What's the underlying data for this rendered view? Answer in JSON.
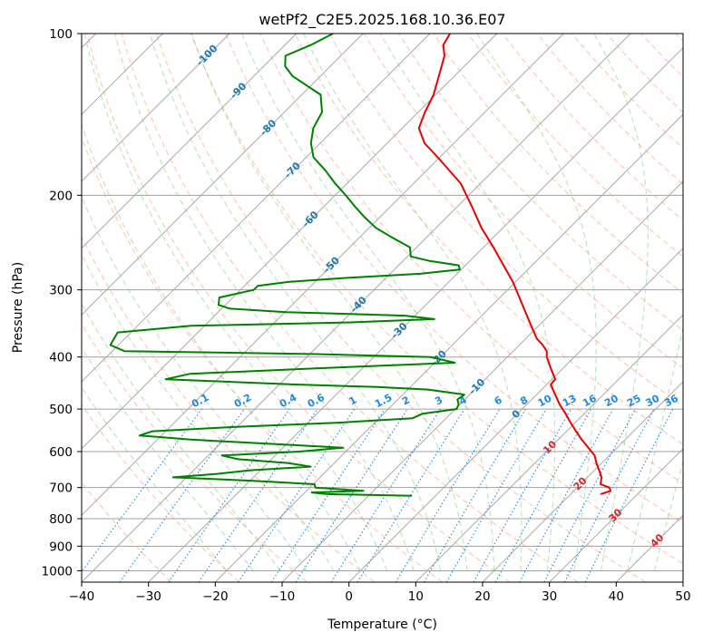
{
  "colors": {
    "temperature": "#ee0000",
    "dewpoint": "#008000",
    "isotherm": "#a0a0a0",
    "isobar": "#a0a0a0",
    "dry_adiabat": "#ff8c69",
    "moist_adiabat": "#77c977",
    "mixing_ratio": "#1e88e5",
    "isotherm_label": "#1f77b4",
    "mixing_label": "#1e88e5",
    "warm_label": "#d62728"
  },
  "chart_data": {
    "type": "line",
    "title": "wetPf2_C2E5.2025.168.10.36.E07",
    "xlabel": "Temperature (°C)",
    "ylabel": "Pressure (hPa)",
    "xlim": [
      -40,
      50
    ],
    "ylim": [
      1050,
      100
    ],
    "y_scale": "log",
    "x_ticks": [
      "−40",
      "−30",
      "−20",
      "−10",
      "0",
      "10",
      "20",
      "30",
      "40",
      "50"
    ],
    "y_ticks": [
      "100",
      "200",
      "300",
      "400",
      "500",
      "600",
      "700",
      "800",
      "900",
      "1000"
    ],
    "grid": true,
    "skew": true,
    "isotherm_labels": [
      "-100",
      "-90",
      "-80",
      "-70",
      "-60",
      "-50",
      "-40",
      "-30",
      "-20",
      "-10",
      "0"
    ],
    "warm_isotherm_labels": [
      "10",
      "20",
      "30",
      "40"
    ],
    "mixing_ratio_labels": [
      "0.1",
      "0.2",
      "0.4",
      "0.6",
      "1",
      "1.5",
      "2",
      "3",
      "4",
      "6",
      "8",
      "10",
      "13",
      "16",
      "20",
      "25",
      "30",
      "36"
    ],
    "series": [
      {
        "name": "temperature",
        "pressure": [
          720,
          710,
          700,
          690,
          670,
          650,
          630,
          610,
          590,
          570,
          550,
          530,
          510,
          490,
          470,
          450,
          440,
          420,
          400,
          390,
          380,
          370,
          350,
          330,
          310,
          290,
          270,
          250,
          230,
          210,
          190,
          170,
          160,
          150,
          140,
          130,
          120,
          110,
          105,
          100
        ],
        "values": [
          24.5,
          25.5,
          24.8,
          23.0,
          22.1,
          20.7,
          19.2,
          17.8,
          15.7,
          13.5,
          11.4,
          9.3,
          7.2,
          4.9,
          2.8,
          0.6,
          0.5,
          -1.8,
          -4.1,
          -5.0,
          -6.5,
          -8.3,
          -11.1,
          -14.0,
          -17.1,
          -20.4,
          -24.3,
          -28.5,
          -33.2,
          -37.8,
          -43.0,
          -50.3,
          -54.4,
          -57.5,
          -59.0,
          -60.3,
          -62.3,
          -64.5,
          -66.3,
          -67.0
        ]
      },
      {
        "name": "dewpoint",
        "pressure": [
          725,
          720,
          715,
          710,
          700,
          690,
          680,
          670,
          660,
          650,
          640,
          630,
          620,
          610,
          600,
          590,
          580,
          570,
          560,
          550,
          540,
          530,
          520,
          510,
          500,
          490,
          480,
          470,
          460,
          455,
          450,
          440,
          430,
          420,
          410,
          400,
          395,
          390,
          380,
          360,
          350,
          345,
          340,
          335,
          330,
          325,
          320,
          310,
          300,
          295,
          290,
          285,
          280,
          275,
          270,
          265,
          260,
          250,
          240,
          230,
          220,
          210,
          200,
          190,
          180,
          170,
          160,
          150,
          140,
          130,
          120,
          115,
          110,
          105,
          100
        ],
        "values": [
          -3.5,
          -16.5,
          -19.0,
          -11.5,
          -19.2,
          -19.8,
          -29.5,
          -42.0,
          -35.8,
          -31.5,
          -23.0,
          -27.0,
          -35.0,
          -38.0,
          -27.0,
          -21.0,
          -33.0,
          -45.0,
          -53.3,
          -52.0,
          -40.5,
          -25.4,
          -15.0,
          -14.2,
          -9.8,
          -10.2,
          -11.1,
          -10.8,
          -17.0,
          -25.0,
          -37.7,
          -57.8,
          -55.0,
          -37.0,
          -17.0,
          -21.5,
          -39.0,
          -68.2,
          -71.2,
          -72.0,
          -62.0,
          -39.0,
          -26.6,
          -31.5,
          -49.8,
          -58.8,
          -61.0,
          -62.0,
          -58.0,
          -58.0,
          -54.0,
          -46.0,
          -35.5,
          -30.2,
          -31.0,
          -36.0,
          -39.5,
          -41.0,
          -45.0,
          -49.0,
          -52.2,
          -55.3,
          -58.4,
          -61.8,
          -65.1,
          -68.9,
          -71.4,
          -73.3,
          -74.4,
          -77.2,
          -84.2,
          -86.8,
          -88.3,
          -86.1,
          -84.5
        ]
      }
    ]
  }
}
